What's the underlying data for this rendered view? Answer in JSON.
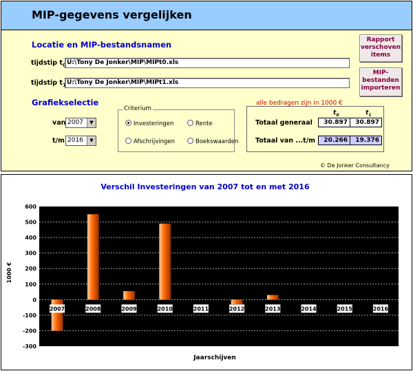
{
  "app": {
    "title": "MIP-gegevens vergelijken"
  },
  "locatie": {
    "heading": "Locatie en MIP-bestandsnamen",
    "t0_label": "tijdstip t",
    "t0_sub": "0",
    "t0_path": "U:\\Tony De Jonker\\MIP\\MIPt0.xls",
    "t1_label": "tijdstip t",
    "t1_sub": "1",
    "t1_path": "U:\\Tony De Jonker\\MIP\\MIPt1.xls"
  },
  "buttons": {
    "rapport_line1": "Rapport",
    "rapport_line2": "verschoven",
    "rapport_line3": "items",
    "import_line1": "MIP-",
    "import_line2": "bestanden",
    "import_line3": "importeren"
  },
  "grafiek": {
    "heading": "Grafiekselectie",
    "van_label": "van",
    "van_value": "2007",
    "tm_label": "t/m",
    "tm_value": "2016",
    "arrow_icon": "▼"
  },
  "criterium": {
    "legend": "Criterium",
    "options": [
      {
        "label": "Investeringen",
        "checked": true
      },
      {
        "label": "Rente",
        "checked": false
      },
      {
        "label": "Afschrijvingen",
        "checked": false
      },
      {
        "label": "Boekswaarden",
        "checked": false
      }
    ]
  },
  "totals": {
    "note": "alle bedragen zijn in 1000 €",
    "col_t0": "t",
    "col_t0_sub": "0",
    "col_t1": "t",
    "col_t1_sub": "1",
    "generaal_label": "Totaal generaal",
    "generaal_t0": "30.897",
    "generaal_t1": "30.897",
    "van_tm_label": "Totaal van ...t/m ...",
    "van_tm_t0": "20.266",
    "van_tm_t1": "19.376"
  },
  "copyright": "© De Jonker Consultancy",
  "chart_data": {
    "type": "bar",
    "title": "Verschil Investeringen van 2007 tot en met 2016",
    "xlabel": "Jaarschijven",
    "ylabel": "1000 €",
    "categories": [
      "2007",
      "2008",
      "2009",
      "2010",
      "2011",
      "2012",
      "2013",
      "2014",
      "2015",
      "2016"
    ],
    "values": [
      -200,
      550,
      55,
      490,
      0,
      -30,
      30,
      0,
      0,
      0
    ],
    "ylim": [
      -300,
      600
    ],
    "yticks": [
      "600",
      "500",
      "400",
      "300",
      "200",
      "100",
      "0",
      "-100",
      "-200",
      "-300"
    ],
    "grid": true,
    "colors": {
      "plot_bg": "#000000",
      "bar_light": "#ffcc99",
      "bar_mid": "#ff6600",
      "bar_dark": "#993300",
      "title": "#0000cc"
    }
  }
}
